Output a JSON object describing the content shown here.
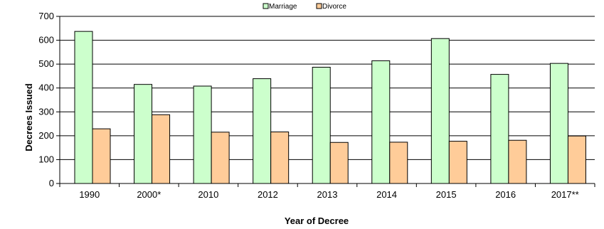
{
  "chart_data": {
    "type": "bar",
    "title": "",
    "xlabel": "Year of Decree",
    "ylabel": "Decrees Issued",
    "categories": [
      "1990",
      "2000*",
      "2010",
      "2012",
      "2013",
      "2014",
      "2015",
      "2016",
      "2017**"
    ],
    "series": [
      {
        "name": "Marriage",
        "color": "#ccffcc",
        "values": [
          637,
          415,
          408,
          439,
          487,
          514,
          607,
          457,
          503
        ]
      },
      {
        "name": "Divorce",
        "color": "#ffcc99",
        "values": [
          229,
          288,
          215,
          216,
          172,
          173,
          177,
          181,
          199
        ]
      }
    ],
    "ylim": [
      0,
      700
    ],
    "yticks": [
      0,
      100,
      200,
      300,
      400,
      500,
      600,
      700
    ],
    "grid": true,
    "legend_position": "top-center"
  }
}
